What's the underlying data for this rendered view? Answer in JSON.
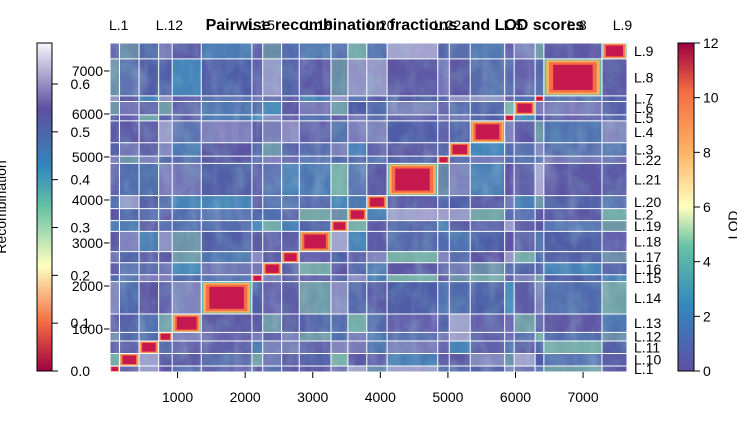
{
  "chart_data": {
    "type": "heatmap",
    "title": "Pairwise recombination fractions and LOD scores",
    "xlabel": "",
    "ylabel": "",
    "left_legend_label": "Recombination",
    "right_legend_label": "LOD",
    "x_range": [
      0,
      7650
    ],
    "y_range": [
      0,
      7650
    ],
    "x_ticks": [
      1000,
      2000,
      3000,
      4000,
      5000,
      6000,
      7000
    ],
    "y_ticks": [
      1000,
      2000,
      3000,
      4000,
      5000,
      6000,
      7000
    ],
    "rf_scale": {
      "min": 0.0,
      "max": 0.6,
      "ticks": [
        0.0,
        0.1,
        0.2,
        0.3,
        0.4,
        0.5,
        0.6
      ]
    },
    "lod_scale": {
      "min": 0,
      "max": 12,
      "ticks": [
        0,
        2,
        4,
        6,
        8,
        10,
        12
      ]
    },
    "colors": {
      "map_low": "#9e0142",
      "map_mid": "#ffffbf",
      "map_high": "#5e4fa2",
      "rf_high_end": "#f5f5fb",
      "background": "#5a63a8",
      "grid": "#ffffff"
    },
    "groups": [
      {
        "label": "L.1",
        "start": 0,
        "end": 140
      },
      {
        "label": "L.10",
        "start": 140,
        "end": 430
      },
      {
        "label": "L.11",
        "start": 430,
        "end": 720
      },
      {
        "label": "L.12",
        "start": 720,
        "end": 920
      },
      {
        "label": "L.13",
        "start": 920,
        "end": 1350
      },
      {
        "label": "L.14",
        "start": 1350,
        "end": 2100
      },
      {
        "label": "L.15",
        "start": 2100,
        "end": 2260
      },
      {
        "label": "L.16",
        "start": 2260,
        "end": 2540
      },
      {
        "label": "L.17",
        "start": 2540,
        "end": 2800
      },
      {
        "label": "L.18",
        "start": 2800,
        "end": 3270
      },
      {
        "label": "L.19",
        "start": 3270,
        "end": 3520
      },
      {
        "label": "L.2",
        "start": 3520,
        "end": 3800
      },
      {
        "label": "L.20",
        "start": 3800,
        "end": 4100
      },
      {
        "label": "L.21",
        "start": 4100,
        "end": 4850
      },
      {
        "label": "L.22",
        "start": 4850,
        "end": 5020
      },
      {
        "label": "L.3",
        "start": 5020,
        "end": 5330
      },
      {
        "label": "L.4",
        "start": 5330,
        "end": 5840
      },
      {
        "label": "L.5",
        "start": 5840,
        "end": 5980
      },
      {
        "label": "L.6",
        "start": 5980,
        "end": 6290
      },
      {
        "label": "L.7",
        "start": 6290,
        "end": 6420
      },
      {
        "label": "L.8",
        "start": 6420,
        "end": 7280
      },
      {
        "label": "L.9",
        "start": 7280,
        "end": 7650
      }
    ],
    "top_labels": [
      "L.1",
      "L.12",
      "L.15",
      "L.18",
      "L.20",
      "L.22",
      "L.5",
      "L.8"
    ],
    "top_last_label": "L.9",
    "right_labels": [
      "L.1",
      "L.10",
      "L.11",
      "L.12",
      "L.13",
      "L.14",
      "L.15",
      "L.16",
      "L.17",
      "L.18",
      "L.19",
      "L.2",
      "L.20",
      "L.21",
      "L.22",
      "L.3",
      "L.4",
      "L.5",
      "L.6",
      "L.7",
      "L.8",
      "L.9"
    ]
  }
}
